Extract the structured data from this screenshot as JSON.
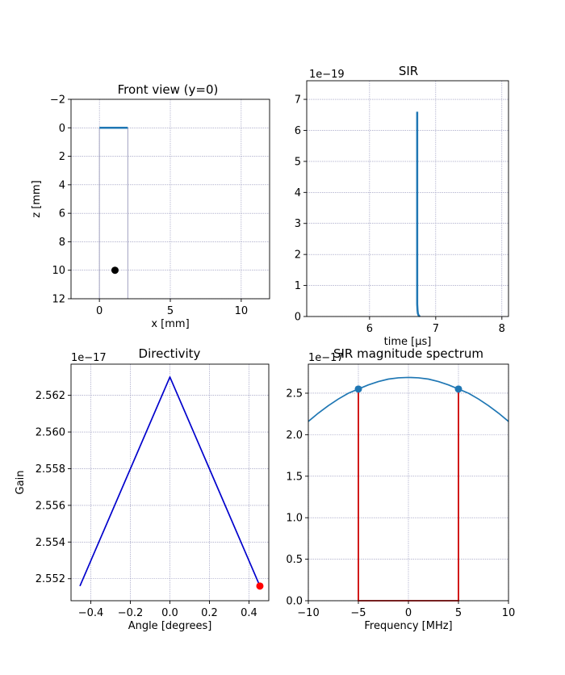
{
  "chart_data": [
    {
      "type": "scatter",
      "title": "Front view (y=0)",
      "xlabel": "x [mm]",
      "ylabel": "z [mm]",
      "xlim": [
        -2,
        12
      ],
      "ylim": [
        12,
        -2
      ],
      "y_inverted": true,
      "xticks": [
        "0",
        "5",
        "10"
      ],
      "yticks": [
        "−2",
        "0",
        "2",
        "4",
        "6",
        "8",
        "10",
        "12"
      ],
      "grid": true,
      "transducer_segment": {
        "x": [
          0,
          2
        ],
        "z": [
          0,
          0
        ],
        "color": "#1f77b4"
      },
      "guide_lines": [
        {
          "x": [
            0,
            0
          ],
          "z": [
            0,
            12
          ]
        },
        {
          "x": [
            2,
            2
          ],
          "z": [
            0,
            12
          ]
        }
      ],
      "points": [
        {
          "x": 1.1,
          "z": 10,
          "color": "#000000"
        }
      ]
    },
    {
      "type": "line",
      "title": "SIR",
      "xlabel": "time [µs]",
      "ylabel": "",
      "offset_text": "1e−19",
      "xlim": [
        5.05,
        8.1
      ],
      "ylim": [
        0,
        7.6
      ],
      "xticks": [
        "6",
        "7",
        "8"
      ],
      "yticks": [
        "0",
        "1",
        "2",
        "3",
        "4",
        "5",
        "6",
        "7"
      ],
      "grid": true,
      "series": [
        {
          "color": "#1f77b4",
          "x": [
            6.72,
            6.72,
            6.72,
            6.725,
            6.73,
            6.74,
            6.76
          ],
          "y": [
            6.6,
            3.0,
            0.4,
            0.2,
            0.1,
            0.04,
            0.0
          ]
        }
      ]
    },
    {
      "type": "line",
      "title": "Directivity",
      "xlabel": "Angle [degrees]",
      "ylabel": "Gain",
      "offset_text": "1e−17",
      "xlim": [
        -0.5,
        0.5
      ],
      "ylim": [
        2.5508,
        2.5637
      ],
      "xticks": [
        "−0.4",
        "−0.2",
        "0.0",
        "0.2",
        "0.4"
      ],
      "yticks": [
        "2.552",
        "2.554",
        "2.556",
        "2.558",
        "2.560",
        "2.562"
      ],
      "grid": true,
      "series": [
        {
          "color": "#0000cc",
          "x": [
            -0.455,
            0.0,
            0.455
          ],
          "y": [
            2.5516,
            2.563,
            2.5516
          ]
        }
      ],
      "marker": {
        "x": 0.455,
        "y": 2.5516,
        "color": "#ff0000"
      }
    },
    {
      "type": "line",
      "title": "SIR magnitude spectrum",
      "xlabel": "Frequency [MHz]",
      "ylabel": "",
      "offset_text": "1e−17",
      "xlim": [
        -10,
        10
      ],
      "ylim": [
        0,
        2.85
      ],
      "xticks": [
        "−10",
        "−5",
        "0",
        "5",
        "10"
      ],
      "yticks": [
        "0.0",
        "0.5",
        "1.0",
        "1.5",
        "2.0",
        "2.5"
      ],
      "grid": true,
      "series": [
        {
          "color": "#1f77b4",
          "x": [
            -10,
            -9,
            -8,
            -7,
            -6,
            -5,
            -4,
            -3,
            -2,
            -1,
            0,
            1,
            2,
            3,
            4,
            5,
            6,
            7,
            8,
            9,
            10
          ],
          "y": [
            2.16,
            2.26,
            2.35,
            2.43,
            2.5,
            2.55,
            2.6,
            2.64,
            2.67,
            2.685,
            2.69,
            2.685,
            2.67,
            2.64,
            2.6,
            2.55,
            2.5,
            2.43,
            2.35,
            2.26,
            2.16
          ]
        }
      ],
      "band_lines": {
        "color": "#cc0000",
        "x": [
          -5,
          -5,
          5,
          5
        ],
        "y": [
          2.55,
          0,
          0,
          2.55
        ]
      },
      "markers": [
        {
          "x": -5,
          "y": 2.55,
          "color": "#1f77b4"
        },
        {
          "x": 5,
          "y": 2.55,
          "color": "#1f77b4"
        }
      ]
    }
  ]
}
